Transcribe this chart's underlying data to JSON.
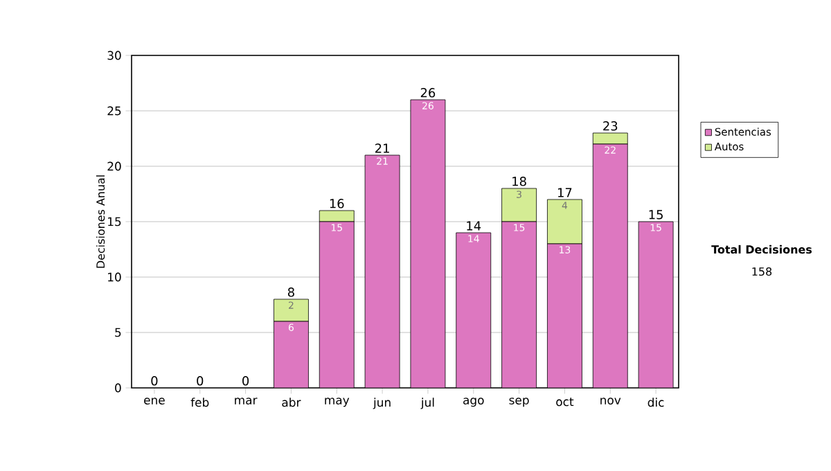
{
  "chart_data": {
    "type": "bar",
    "stacked": true,
    "ylabel": "Decisiones Anual",
    "categories": [
      "ene",
      "feb",
      "mar",
      "abr",
      "may",
      "jun",
      "jul",
      "ago",
      "sep",
      "oct",
      "nov",
      "dic"
    ],
    "series": [
      {
        "name": "Sentencias",
        "color": "#dd77c0",
        "values": [
          0,
          0,
          0,
          6,
          15,
          21,
          26,
          14,
          15,
          13,
          22,
          15
        ],
        "value_labels": [
          null,
          null,
          null,
          "6",
          "15",
          "21",
          "26",
          "14",
          "15",
          "13",
          "22",
          "15"
        ]
      },
      {
        "name": "Autos",
        "color": "#d4ec94",
        "values": [
          0,
          0,
          0,
          2,
          1,
          0,
          0,
          0,
          3,
          4,
          1,
          0
        ],
        "value_labels": [
          null,
          null,
          null,
          "2",
          null,
          null,
          null,
          null,
          "3",
          "4",
          null,
          null
        ]
      }
    ],
    "totals": [
      "0",
      "0",
      "0",
      "8",
      "16",
      "21",
      "26",
      "14",
      "18",
      "17",
      "23",
      "15"
    ],
    "ylim": [
      0,
      30
    ],
    "yticks": [
      0,
      5,
      10,
      15,
      20,
      25,
      30
    ],
    "grid": "y",
    "legend": "right",
    "annotations": [
      "Total Decisiones",
      "158"
    ]
  }
}
